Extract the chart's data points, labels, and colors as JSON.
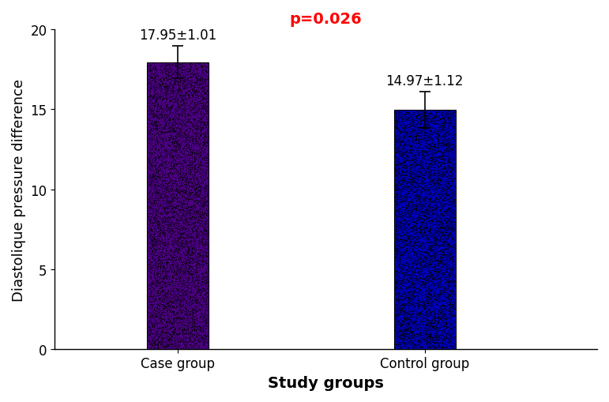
{
  "categories": [
    "Case group",
    "Control group"
  ],
  "values": [
    17.95,
    14.97
  ],
  "errors": [
    1.01,
    1.12
  ],
  "labels": [
    "17.95±1.01",
    "14.97±1.12"
  ],
  "bar_colors": [
    "#4B0082",
    "#0000BB"
  ],
  "dot_color": "black",
  "xlabel": "Study groups",
  "ylabel": "Diastolique pressure difference",
  "ylim": [
    0,
    20
  ],
  "yticks": [
    0,
    5,
    10,
    15,
    20
  ],
  "title": "p=0.026",
  "title_color": "red",
  "title_fontsize": 14,
  "tick_fontsize": 12,
  "annot_fontsize": 12,
  "xlabel_fontsize": 14,
  "xlabel_fontweight": "bold",
  "ylabel_fontsize": 13,
  "bar_width": 0.25,
  "x_positions": [
    1,
    2
  ],
  "xlim": [
    0.5,
    2.7
  ]
}
